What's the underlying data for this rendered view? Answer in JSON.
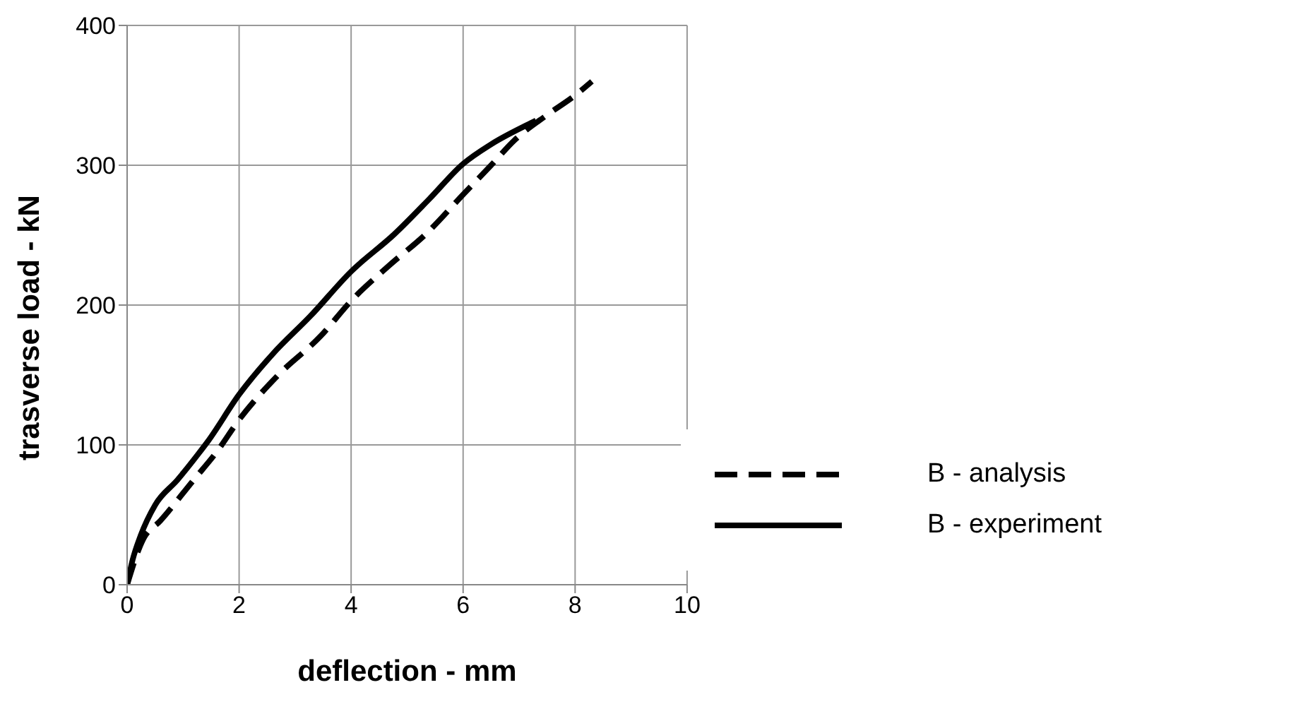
{
  "chart_data": {
    "type": "line",
    "xlabel": "deflection - mm",
    "ylabel": "trasverse load - kN",
    "xlim": [
      0,
      10
    ],
    "xticks": [
      0,
      2,
      4,
      6,
      8,
      10
    ],
    "ylim": [
      0,
      400
    ],
    "yticks": [
      0,
      100,
      200,
      300,
      400
    ],
    "grid": true,
    "legend": "bottom right",
    "marker": "none",
    "series": [
      {
        "name": "B - analysis",
        "color": "#000000",
        "line_style": "dashed",
        "x": [
          0,
          0.28,
          0.6,
          1.19,
          1.6,
          2,
          2.7,
          3.46,
          4,
          4.7,
          5.34,
          6,
          6.5,
          6.92,
          7.5,
          8,
          8.3
        ],
        "values": [
          0,
          32,
          46,
          75,
          95,
          118,
          150,
          178,
          203,
          229,
          251,
          279,
          300,
          318,
          336,
          350,
          360
        ]
      },
      {
        "name": "B - experiment",
        "color": "#000000",
        "line_style": "solid",
        "x": [
          0,
          0.1,
          0.24,
          0.5,
          0.9,
          1.28,
          1.45,
          2,
          2.6,
          3.27,
          4,
          4.78,
          5.4,
          6,
          6.5,
          7.2,
          7.3
        ],
        "values": [
          0,
          18,
          35,
          57,
          75,
          94,
          103,
          136,
          165,
          192,
          224,
          251,
          276,
          301,
          315,
          330,
          332
        ]
      }
    ]
  }
}
